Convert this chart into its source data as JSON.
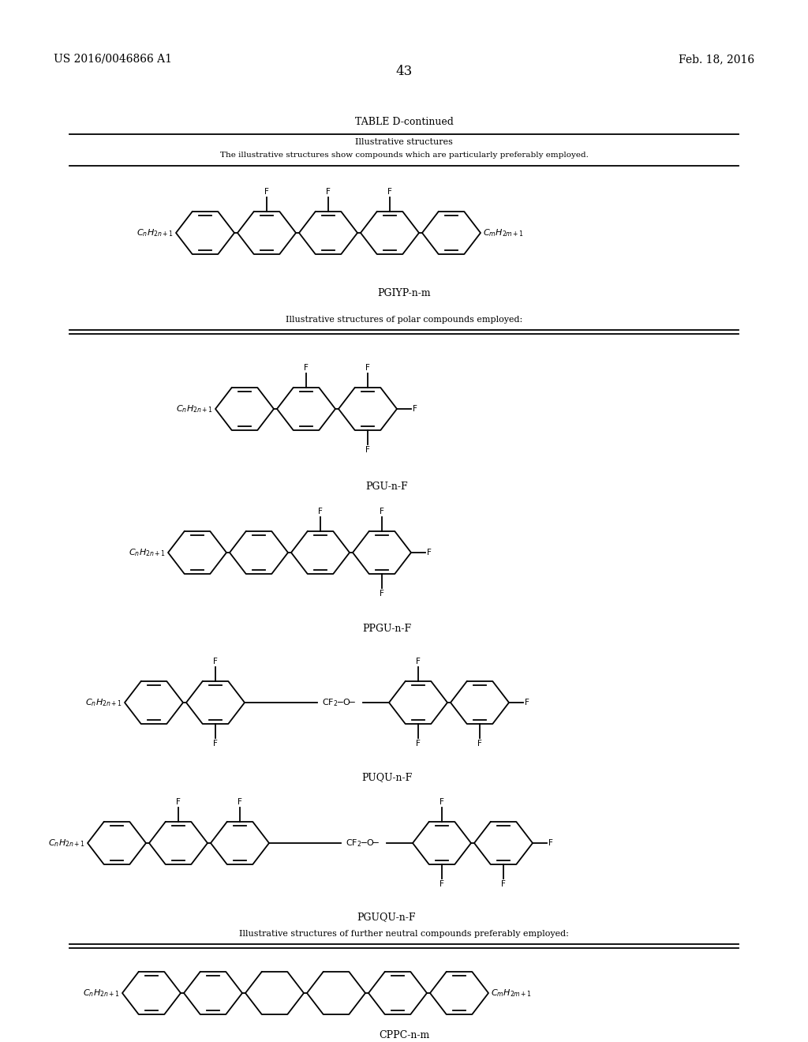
{
  "bg_color": "#ffffff",
  "page_width": 10.24,
  "page_height": 13.2,
  "header_left": "US 2016/0046866 A1",
  "header_right": "Feb. 18, 2016",
  "page_number": "43",
  "table_title": "TABLE D-continued",
  "section1_title": "Illustrative structures",
  "section1_subtitle": "The illustrative structures show compounds which are particularly preferably employed.",
  "section2_title": "Illustrative structures of polar compounds employed:",
  "section3_title": "Illustrative structures of further neutral compounds preferably employed:",
  "line_color": "#000000",
  "text_color": "#000000"
}
